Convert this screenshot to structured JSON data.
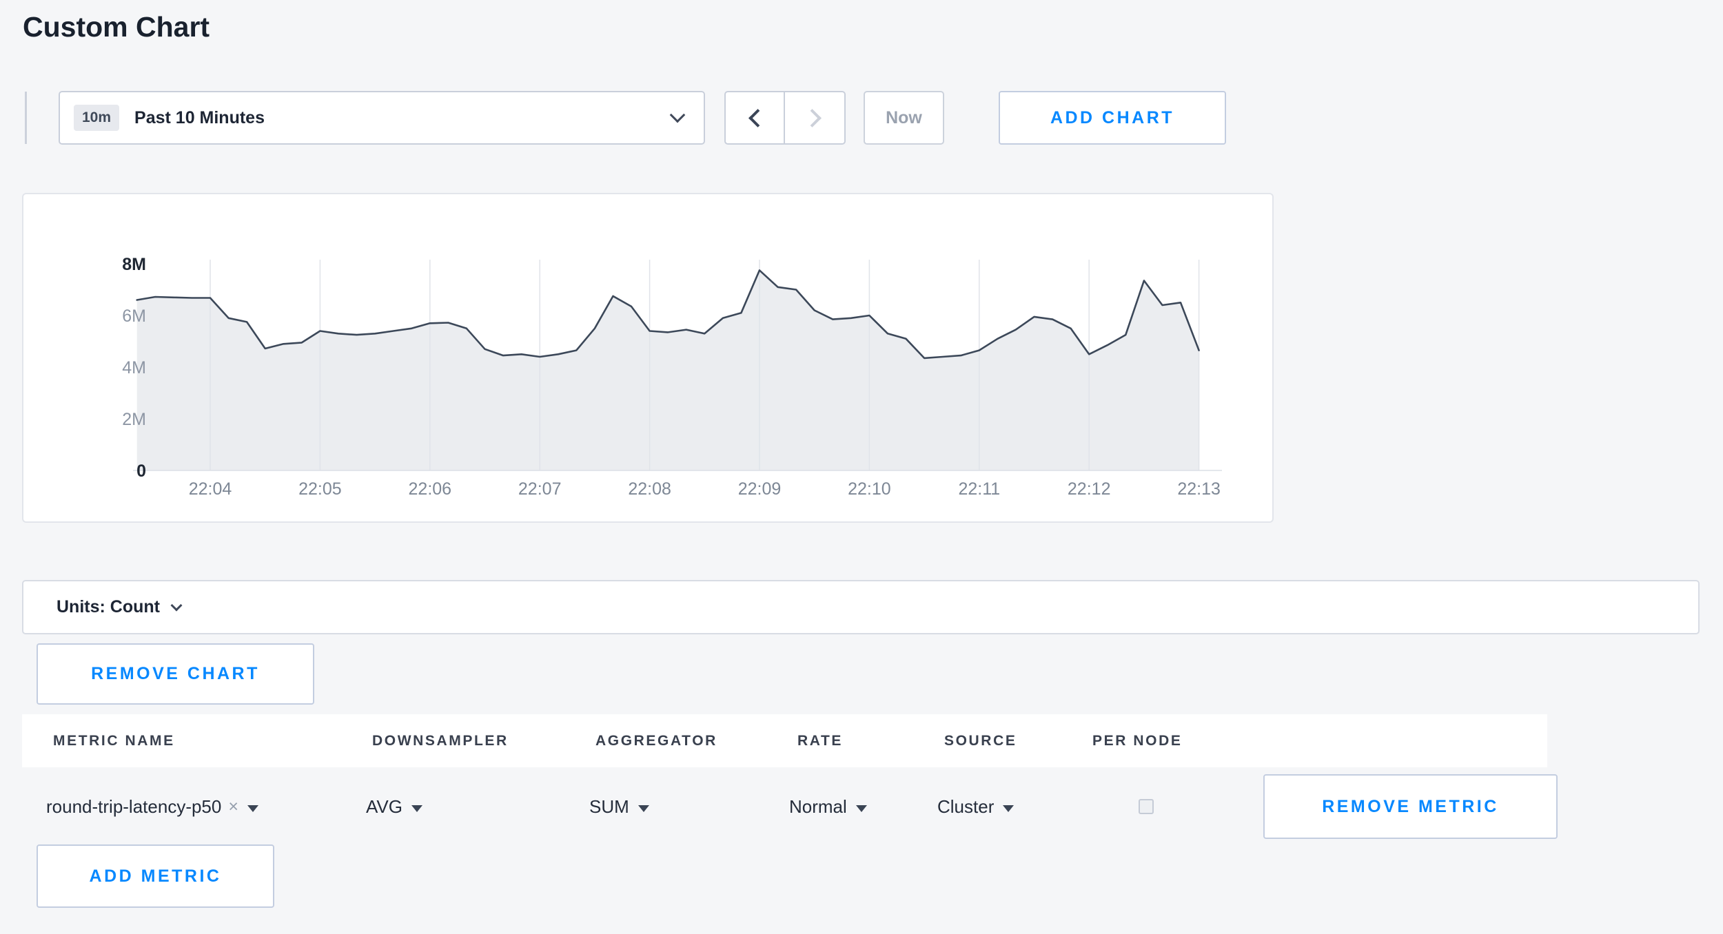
{
  "page": {
    "title": "Custom Chart"
  },
  "toolbar": {
    "time_range_badge": "10m",
    "time_range_label": "Past 10 Minutes",
    "now_button_label": "Now",
    "add_chart_label": "ADD CHART"
  },
  "units_bar": {
    "label": "Units: Count"
  },
  "chart_actions": {
    "remove_chart_label": "REMOVE CHART",
    "remove_metric_label": "REMOVE METRIC",
    "add_metric_label": "ADD METRIC"
  },
  "metrics_table": {
    "headers": [
      "METRIC NAME",
      "DOWNSAMPLER",
      "AGGREGATOR",
      "RATE",
      "SOURCE",
      "PER NODE"
    ],
    "rows": [
      {
        "metric_name": "round-trip-latency-p50",
        "remove_symbol": "×",
        "downsampler": "AVG",
        "aggregator": "SUM",
        "rate": "Normal",
        "source": "Cluster",
        "per_node_checked": false
      }
    ]
  },
  "colors": {
    "accent_blue": "#0788ff",
    "line": "#3c4859",
    "area_fill": "#ebedf0",
    "grid": "#e0e3e9",
    "axis_label": "#7d8795",
    "axis_label_strong": "#1f2733"
  },
  "chart_data": {
    "type": "area",
    "title": "",
    "ylabel": "Count",
    "legend": "none",
    "grid": "vertical",
    "x_ticks": [
      "22:04",
      "22:05",
      "22:06",
      "22:07",
      "22:08",
      "22:09",
      "22:10",
      "22:11",
      "22:12",
      "22:13"
    ],
    "y_ticks": [
      "0",
      "2M",
      "4M",
      "6M",
      "8M"
    ],
    "ylim_millions": [
      0,
      8
    ],
    "sample_interval_seconds": 10,
    "start_offset_seconds": -40,
    "values_millions": [
      6.6,
      6.72,
      6.7,
      6.68,
      6.68,
      5.9,
      5.75,
      4.72,
      4.9,
      4.95,
      5.4,
      5.3,
      5.25,
      5.3,
      5.4,
      5.5,
      5.7,
      5.72,
      5.5,
      4.7,
      4.45,
      4.5,
      4.4,
      4.5,
      4.65,
      5.5,
      6.75,
      6.35,
      5.4,
      5.35,
      5.45,
      5.3,
      5.9,
      6.1,
      7.75,
      7.1,
      7.0,
      6.2,
      5.85,
      5.9,
      6.0,
      5.3,
      5.1,
      4.35,
      4.4,
      4.45,
      4.65,
      5.1,
      5.45,
      5.95,
      5.85,
      5.5,
      4.5,
      4.85,
      5.25,
      7.35,
      6.4,
      6.5,
      4.65
    ]
  }
}
